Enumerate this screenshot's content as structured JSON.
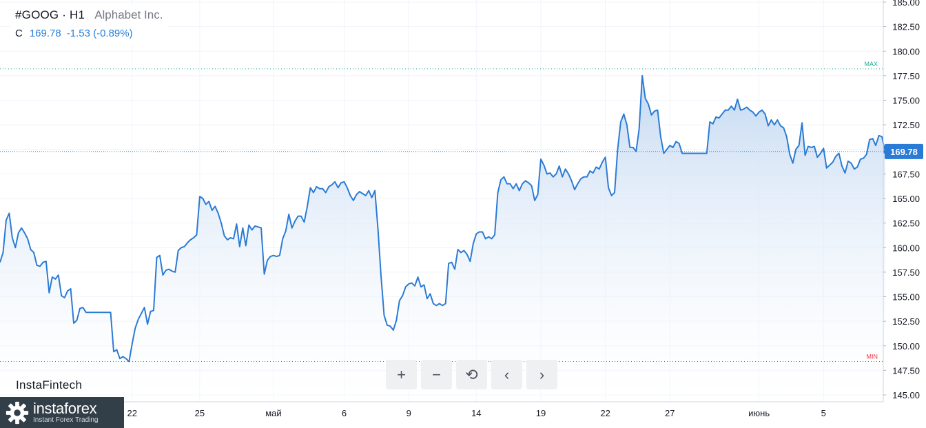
{
  "header": {
    "symbol": "#GOOG · H1",
    "company": "Alphabet Inc.",
    "ohlc_label": "C",
    "price": "169.78",
    "change": "-1.53 (-0.89%)"
  },
  "brand": "InstaFintech",
  "controls": [
    {
      "name": "zoom-in-button",
      "icon": "plus-icon",
      "glyph": "+"
    },
    {
      "name": "zoom-out-button",
      "icon": "minus-icon",
      "glyph": "−"
    },
    {
      "name": "reset-button",
      "icon": "reset-icon",
      "glyph": "⟲"
    },
    {
      "name": "scroll-left-button",
      "icon": "chevron-left-icon",
      "glyph": "‹"
    },
    {
      "name": "scroll-right-button",
      "icon": "chevron-right-icon",
      "glyph": "›"
    }
  ],
  "logo": {
    "name": "instaforex",
    "tagline": "Instant Forex Trading"
  },
  "chart_data": {
    "type": "area",
    "colors": {
      "line": "#2a7bd5",
      "area": "#c9dcf3",
      "max": "#22ab94",
      "min": "#f23645",
      "price_tag": "#2a7bd5"
    },
    "ylim": [
      145,
      185
    ],
    "y_ticks": [
      "145.00",
      "147.50",
      "150.00",
      "152.50",
      "155.00",
      "157.50",
      "160.00",
      "162.50",
      "165.00",
      "167.50",
      "170.00",
      "172.50",
      "175.00",
      "177.50",
      "180.00",
      "182.50",
      "185.00"
    ],
    "x_ticks": [
      {
        "label": "22",
        "index": 43
      },
      {
        "label": "25",
        "index": 65
      },
      {
        "label": "май",
        "index": 89
      },
      {
        "label": "6",
        "index": 112
      },
      {
        "label": "9",
        "index": 133
      },
      {
        "label": "14",
        "index": 155
      },
      {
        "label": "19",
        "index": 176
      },
      {
        "label": "22",
        "index": 197
      },
      {
        "label": "27",
        "index": 218
      },
      {
        "label": "июнь",
        "index": 247
      },
      {
        "label": "5",
        "index": 268
      }
    ],
    "max": {
      "label": "MAX",
      "value": 178.2
    },
    "min": {
      "label": "MIN",
      "value": 148.4
    },
    "last": {
      "label": "169.78",
      "value": 169.78
    },
    "values": [
      158.5,
      159.5,
      162.8,
      163.5,
      161.0,
      160.0,
      161.5,
      162.0,
      161.5,
      160.9,
      159.8,
      159.5,
      158.2,
      158.1,
      158.5,
      158.6,
      155.4,
      157.0,
      156.8,
      157.2,
      155.1,
      154.9,
      155.6,
      155.8,
      152.3,
      152.6,
      153.8,
      153.9,
      153.4,
      153.4,
      153.4,
      153.4,
      153.4,
      153.4,
      153.4,
      153.4,
      153.4,
      149.4,
      149.6,
      148.7,
      148.9,
      148.7,
      148.4,
      150.2,
      151.8,
      152.7,
      153.3,
      153.9,
      152.2,
      153.5,
      153.6,
      159.0,
      159.2,
      157.2,
      157.7,
      157.8,
      157.6,
      157.5,
      159.7,
      160.0,
      160.1,
      160.5,
      160.8,
      161.0,
      161.3,
      165.2,
      165.0,
      164.4,
      164.7,
      163.8,
      164.2,
      163.5,
      162.5,
      161.2,
      160.8,
      161.0,
      160.9,
      162.4,
      160.1,
      162.0,
      160.2,
      162.3,
      161.8,
      162.2,
      162.1,
      162.0,
      157.3,
      158.7,
      159.1,
      159.2,
      159.1,
      159.2,
      160.9,
      161.7,
      163.4,
      162.0,
      162.7,
      163.2,
      163.2,
      162.6,
      164.2,
      166.1,
      165.6,
      166.2,
      166.0,
      166.0,
      165.6,
      166.2,
      166.4,
      166.7,
      166.1,
      166.6,
      166.7,
      166.1,
      165.3,
      164.8,
      165.4,
      165.7,
      165.5,
      165.3,
      165.8,
      165.1,
      165.8,
      161.9,
      157.1,
      153.1,
      152.1,
      152.0,
      151.6,
      152.6,
      154.6,
      155.1,
      156.0,
      156.3,
      156.4,
      156.1,
      157.0,
      156.0,
      156.2,
      154.8,
      155.3,
      154.3,
      154.1,
      154.3,
      154.1,
      154.3,
      158.4,
      158.5,
      157.8,
      159.8,
      159.5,
      159.7,
      159.3,
      158.6,
      160.4,
      161.4,
      161.6,
      161.6,
      160.9,
      161.1,
      160.9,
      161.3,
      165.6,
      166.9,
      167.2,
      166.5,
      166.5,
      166.0,
      166.5,
      165.8,
      166.5,
      166.8,
      166.6,
      166.3,
      164.8,
      165.4,
      169.0,
      168.4,
      167.5,
      167.6,
      167.2,
      167.5,
      168.3,
      167.2,
      168.0,
      167.5,
      166.8,
      165.9,
      166.5,
      167.0,
      167.2,
      167.2,
      167.8,
      167.6,
      168.2,
      168.0,
      168.7,
      169.2,
      166.1,
      165.3,
      165.6,
      170.0,
      172.8,
      173.6,
      172.5,
      170.2,
      170.2,
      169.8,
      172.1,
      177.5,
      175.2,
      174.6,
      173.5,
      173.9,
      174.0,
      171.3,
      169.6,
      170.0,
      170.4,
      170.2,
      170.8,
      170.6,
      169.6,
      169.6,
      169.6,
      169.6,
      169.6,
      169.6,
      169.6,
      169.6,
      169.6,
      172.8,
      172.6,
      173.3,
      173.2,
      173.6,
      174.0,
      174.0,
      174.4,
      174.0,
      175.1,
      174.0,
      174.1,
      174.3,
      174.0,
      173.8,
      173.4,
      173.8,
      174.0,
      173.6,
      172.4,
      173.0,
      172.5,
      173.0,
      172.4,
      172.2,
      171.3,
      169.5,
      168.6,
      170.0,
      170.4,
      172.7,
      169.4,
      170.3,
      170.2,
      170.3,
      169.2,
      169.6,
      170.1,
      168.1,
      168.4,
      168.7,
      169.3,
      169.6,
      168.3,
      167.6,
      168.8,
      168.6,
      168.0,
      168.2,
      169.0,
      169.1,
      169.5,
      171.0,
      171.1,
      170.4,
      171.4,
      171.3,
      169.78
    ]
  }
}
